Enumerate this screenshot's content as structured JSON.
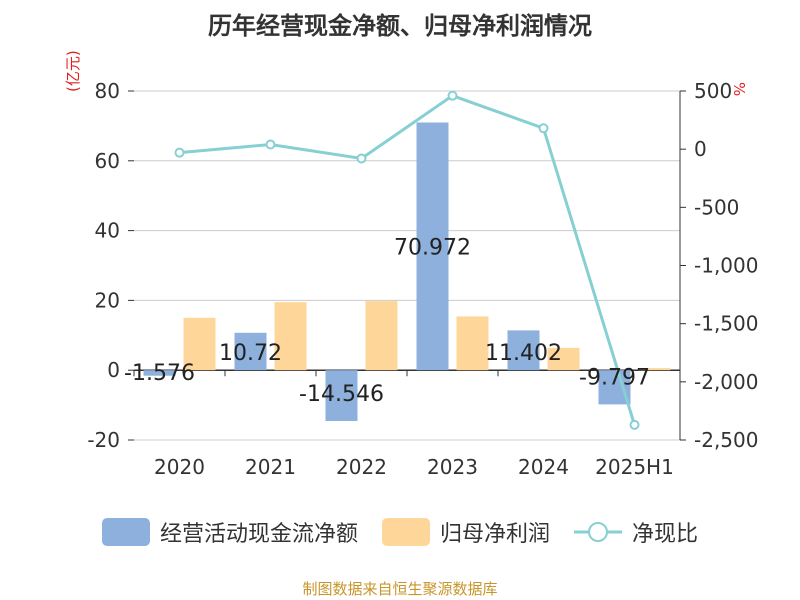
{
  "chart_data": {
    "type": "bar",
    "title": "历年经营现金净额、归母净利润情况",
    "left_unit": "(亿元)",
    "right_unit": "%",
    "categories": [
      "2020",
      "2021",
      "2022",
      "2023",
      "2024",
      "2025H1"
    ],
    "series": [
      {
        "name": "经营活动现金流净额",
        "type": "bar",
        "axis": "left",
        "color": "#8eb0dc",
        "values": [
          -1.576,
          10.72,
          -14.546,
          70.972,
          11.402,
          -9.797
        ],
        "labels": [
          "-1.576",
          "10.72",
          "-14.546",
          "70.972",
          "11.402",
          "-9.797"
        ]
      },
      {
        "name": "归母净利润",
        "type": "bar",
        "axis": "left",
        "color": "#ffd699",
        "values": [
          15.0,
          19.5,
          19.8,
          15.4,
          6.4,
          0.6
        ]
      },
      {
        "name": "净现比",
        "type": "line",
        "axis": "right",
        "color": "#86d0d4",
        "values": [
          -30,
          40,
          -80,
          460,
          180,
          -2370
        ]
      }
    ],
    "y_left": {
      "min": -20,
      "max": 80,
      "ticks": [
        80,
        60,
        40,
        20,
        0,
        -20
      ],
      "tick_labels": [
        "80",
        "60",
        "40",
        "20",
        "0",
        "-20"
      ]
    },
    "y_right": {
      "min": -2500,
      "max": 500,
      "ticks": [
        500,
        0,
        -500,
        -1000,
        -1500,
        -2000,
        -2500
      ],
      "tick_labels": [
        "500",
        "0",
        "-500",
        "-1,000",
        "-1,500",
        "-2,000",
        "-2,500"
      ]
    },
    "grid": true,
    "legend_position": "bottom"
  },
  "footer": "制图数据来自恒生聚源数据库"
}
